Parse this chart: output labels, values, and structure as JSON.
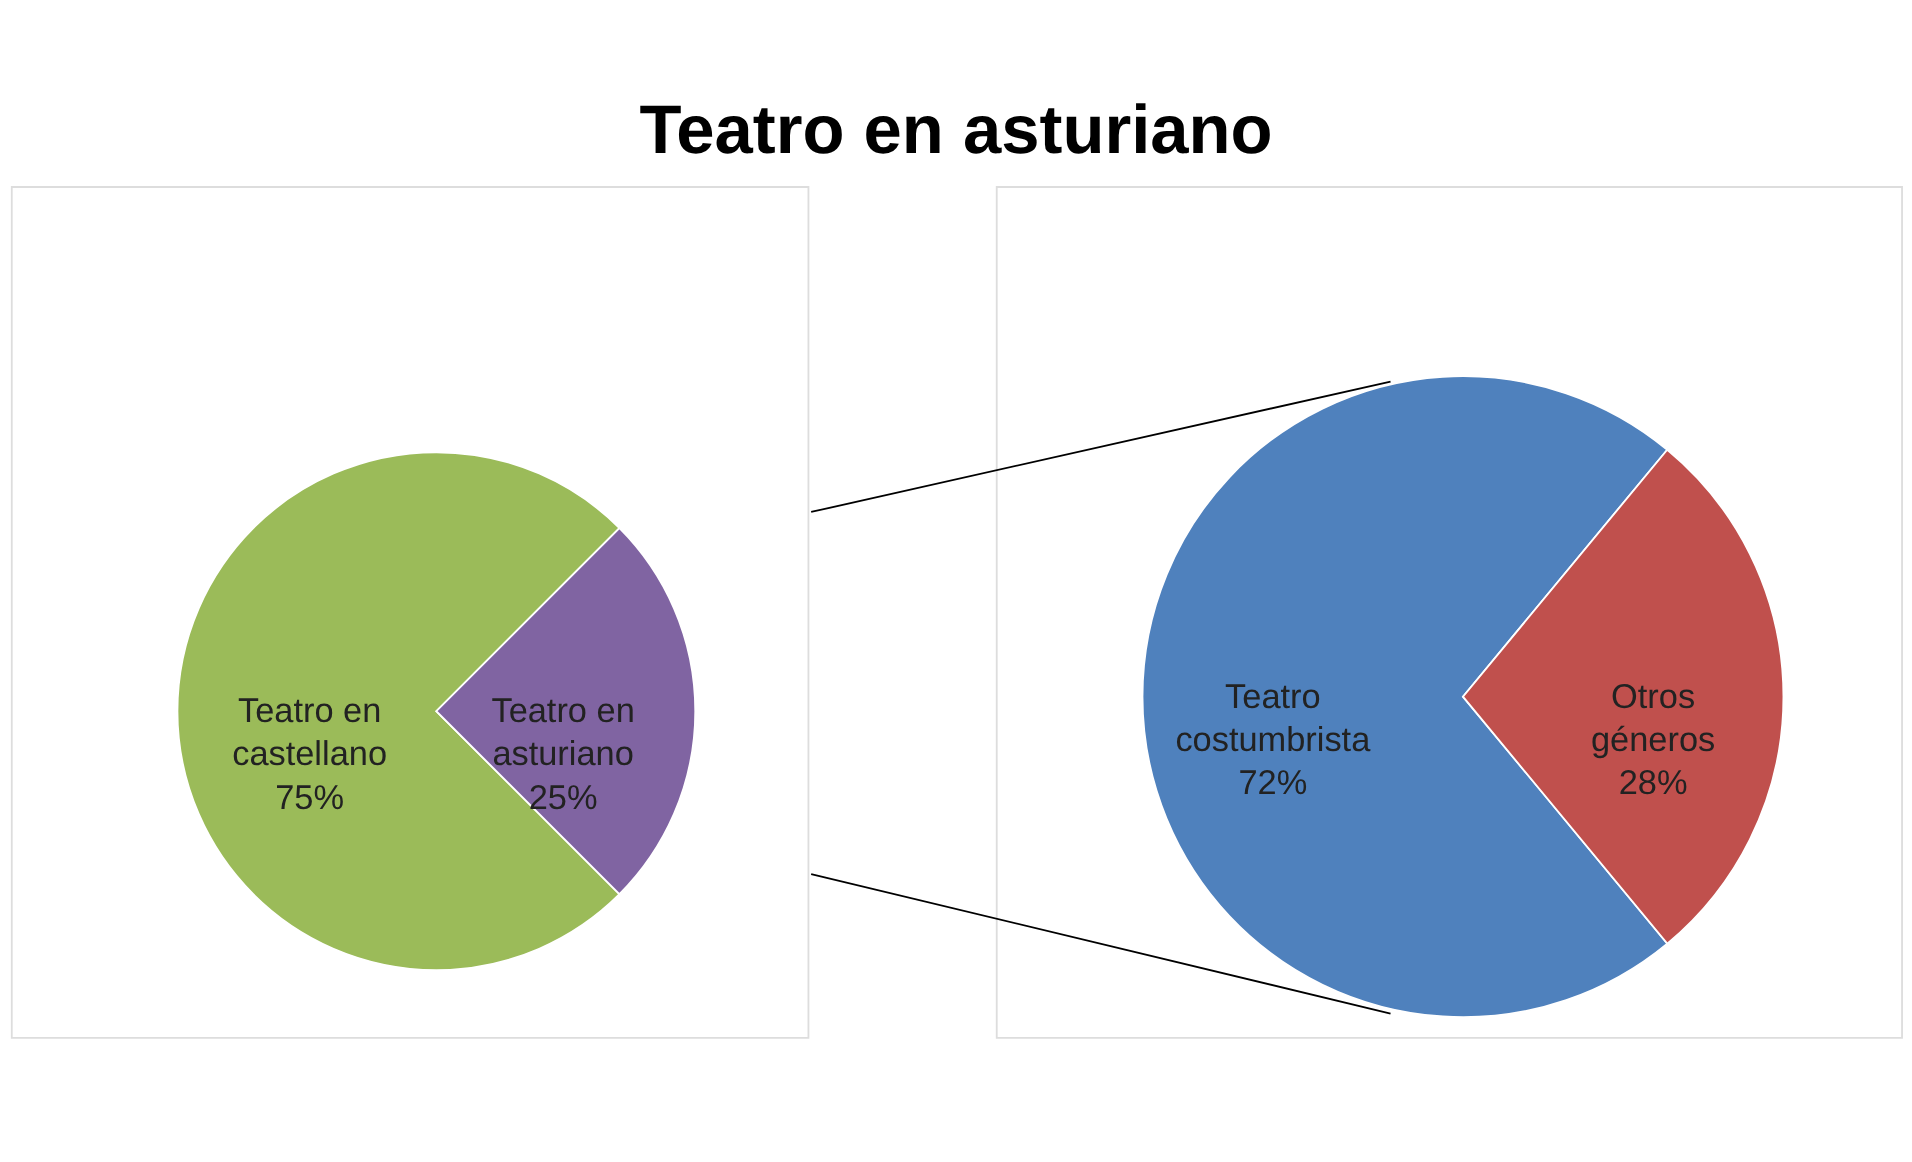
{
  "chart_data": [
    {
      "type": "pie",
      "title": "Teatro en asturiano",
      "categories": [
        "Teatro en castellano",
        "Teatro en asturiano"
      ],
      "values": [
        75,
        25
      ],
      "colors": [
        "#9bbb59",
        "#8064a2"
      ],
      "value_labels": [
        "75%",
        "25%"
      ]
    },
    {
      "type": "pie",
      "categories": [
        "Teatro costumbrista",
        "Otros géneros"
      ],
      "values": [
        72,
        28
      ],
      "colors": [
        "#4f81bd",
        "#c0504d"
      ],
      "value_labels": [
        "72%",
        "28%"
      ]
    }
  ]
}
